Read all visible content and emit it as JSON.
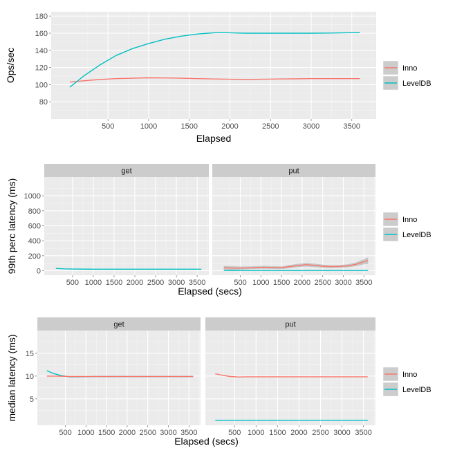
{
  "colors": {
    "inno": "#F8766D",
    "leveldb": "#00BFC4",
    "panel_bg": "#EBEBEB",
    "grid_major": "#FFFFFF",
    "grid_minor": "#F5F5F5",
    "strip_bg": "#CCCCCC",
    "ribbon": "#999999"
  },
  "chart_data": [
    {
      "type": "line",
      "title": "",
      "xlabel": "Elapsed",
      "ylabel": "Ops/sec",
      "xlim": [
        -200,
        3800
      ],
      "ylim": [
        60,
        185
      ],
      "xticks": [
        500,
        1000,
        1500,
        2000,
        2500,
        3000,
        3500
      ],
      "xtick_labels": [
        "500",
        "1000",
        "1500",
        "2000",
        "2500",
        "3000",
        "3500"
      ],
      "yticks": [
        80,
        100,
        120,
        140,
        160,
        180
      ],
      "ytick_labels": [
        "80",
        "100",
        "120",
        "140",
        "160",
        "180"
      ],
      "grid": true,
      "legend": "right",
      "series": [
        {
          "name": "Inno",
          "x": [
            30,
            200,
            400,
            600,
            800,
            1000,
            1200,
            1400,
            1600,
            1800,
            2000,
            2200,
            2400,
            2600,
            2800,
            3000,
            3200,
            3400,
            3600
          ],
          "values": [
            103,
            104.5,
            106,
            107,
            107.5,
            108,
            107.8,
            107.5,
            107,
            106.6,
            106.3,
            106,
            106.3,
            106.6,
            106.8,
            107,
            107,
            107,
            107
          ]
        },
        {
          "name": "LevelDB",
          "x": [
            30,
            200,
            400,
            600,
            800,
            1000,
            1200,
            1400,
            1600,
            1800,
            1900,
            2000,
            2200,
            2400,
            2600,
            2800,
            3000,
            3200,
            3400,
            3600
          ],
          "values": [
            97,
            110,
            123,
            134,
            142,
            148,
            153,
            156.5,
            159,
            160.5,
            161,
            160.5,
            160,
            160,
            160,
            160,
            160,
            160.2,
            160.5,
            160.8
          ]
        }
      ]
    },
    {
      "type": "line",
      "title": "",
      "xlabel": "Elapsed (secs)",
      "ylabel": "99th perc latency (ms)",
      "facet": true,
      "facets": [
        "get",
        "put"
      ],
      "xlim": [
        -180,
        3780
      ],
      "ylim": [
        -60,
        1250
      ],
      "xticks": [
        500,
        1000,
        1500,
        2000,
        2500,
        3000,
        3500
      ],
      "xtick_labels": [
        "500",
        "1000",
        "1500",
        "2000",
        "2500",
        "3000",
        "3500"
      ],
      "yticks": [
        0,
        200,
        400,
        600,
        800,
        1000
      ],
      "ytick_labels": [
        "0",
        "200",
        "400",
        "600",
        "800",
        "1000"
      ],
      "grid": true,
      "legend": "right",
      "series": [
        {
          "name": "Inno",
          "facet": "put",
          "x": [
            100,
            300,
            500,
            700,
            900,
            1100,
            1300,
            1500,
            1700,
            1900,
            2100,
            2300,
            2500,
            2700,
            2900,
            3100,
            3300,
            3500,
            3600
          ],
          "values": [
            40,
            35,
            35,
            38,
            42,
            45,
            42,
            40,
            55,
            70,
            80,
            72,
            60,
            55,
            57,
            65,
            85,
            120,
            135
          ],
          "band": [
            25,
            25,
            20,
            18,
            18,
            20,
            18,
            18,
            20,
            22,
            25,
            22,
            20,
            18,
            18,
            20,
            25,
            35,
            45
          ]
        },
        {
          "name": "LevelDB",
          "facet": "get",
          "x": [
            100,
            300,
            500,
            1000,
            1500,
            2000,
            2500,
            3000,
            3600
          ],
          "values": [
            30,
            25,
            22,
            20,
            20,
            20,
            20,
            20,
            20
          ]
        },
        {
          "name": "LevelDB",
          "facet": "put",
          "x": [
            100,
            500,
            1000,
            1500,
            2000,
            2500,
            3000,
            3600
          ],
          "values": [
            3,
            3,
            3,
            3,
            3,
            3,
            3,
            3
          ]
        }
      ]
    },
    {
      "type": "line",
      "title": "",
      "xlabel": "Elapsed (secs)",
      "ylabel": "median latency (ms)",
      "facet": true,
      "facets": [
        "get",
        "put"
      ],
      "xlim": [
        -180,
        3780
      ],
      "ylim": [
        -0.8,
        20
      ],
      "xticks": [
        500,
        1000,
        1500,
        2000,
        2500,
        3000,
        3500
      ],
      "xtick_labels": [
        "500",
        "1000",
        "1500",
        "2000",
        "2500",
        "3000",
        "3500"
      ],
      "yticks": [
        5,
        10,
        15
      ],
      "ytick_labels": [
        "5",
        "10",
        "15"
      ],
      "grid": true,
      "legend": "right",
      "series": [
        {
          "name": "Inno",
          "facet": "put",
          "x": [
            50,
            200,
            400,
            600,
            800,
            1200,
            2000,
            3000,
            3600
          ],
          "values": [
            10.5,
            10.2,
            9.9,
            9.8,
            9.85,
            9.85,
            9.85,
            9.85,
            9.85
          ]
        },
        {
          "name": "LevelDB",
          "facet": "get",
          "x": [
            50,
            200,
            400,
            600,
            800,
            1200,
            2000,
            3000,
            3600
          ],
          "values": [
            11.2,
            10.6,
            10.1,
            9.85,
            9.85,
            9.9,
            9.9,
            9.9,
            9.9
          ]
        },
        {
          "name": "Inno",
          "facet": "get",
          "x": [
            50,
            300,
            600,
            1000,
            2000,
            3000,
            3600
          ],
          "values": [
            10,
            10,
            9.9,
            9.9,
            9.9,
            9.9,
            9.9
          ]
        },
        {
          "name": "LevelDB",
          "facet": "put",
          "x": [
            50,
            500,
            1000,
            2000,
            3000,
            3600
          ],
          "values": [
            0.3,
            0.3,
            0.3,
            0.3,
            0.3,
            0.3
          ]
        }
      ]
    }
  ],
  "legend": {
    "items": [
      {
        "name": "Inno",
        "color_key": "inno"
      },
      {
        "name": "LevelDB",
        "color_key": "leveldb"
      }
    ]
  }
}
